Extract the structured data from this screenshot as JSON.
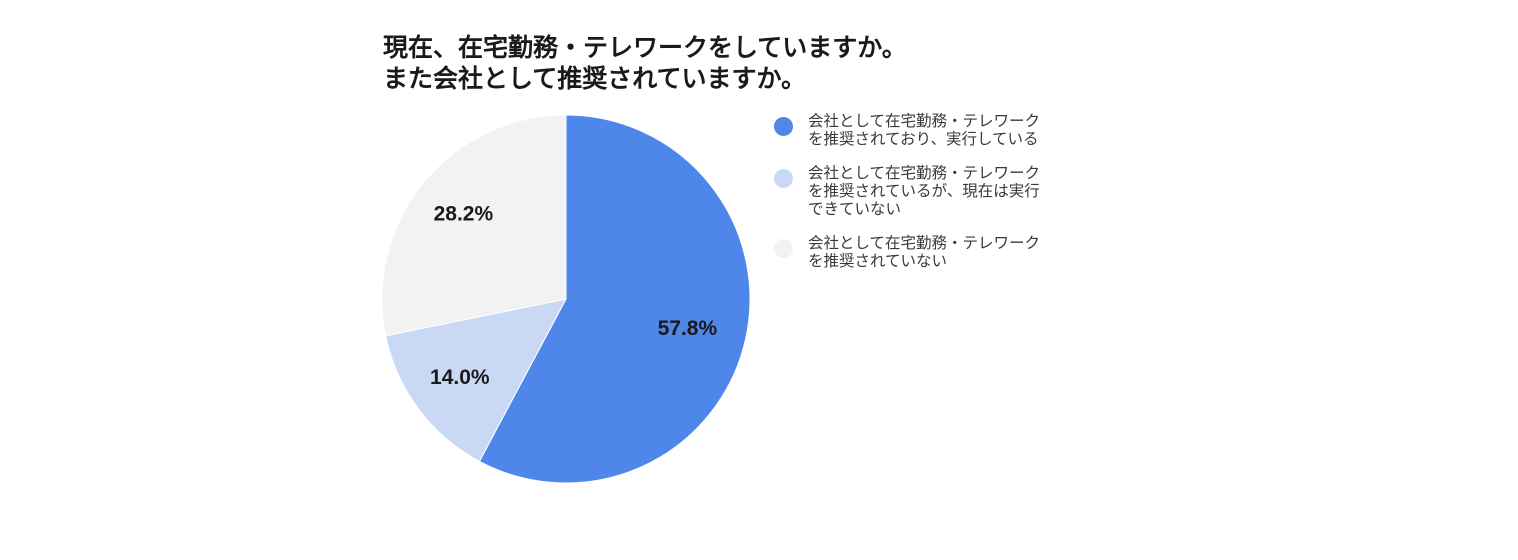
{
  "chart_data": {
    "type": "pie",
    "title_lines": [
      "現在、在宅勤務・テレワークをしていますか。",
      "また会社として推奨されていますか。"
    ],
    "slices": [
      {
        "label_lines": [
          "会社として在宅勤務・テレワーク",
          "を推奨されており、実行している"
        ],
        "value": 57.8,
        "value_label": "57.8%",
        "color": "#4f86ea"
      },
      {
        "label_lines": [
          "会社として在宅勤務・テレワーク",
          "を推奨されているが、現在は実行",
          "できていない"
        ],
        "value": 14.0,
        "value_label": "14.0%",
        "color": "#c9d9f5"
      },
      {
        "label_lines": [
          "会社として在宅勤務・テレワーク",
          "を推奨されていない"
        ],
        "value": 28.2,
        "value_label": "28.2%",
        "color": "#f2f2f2"
      }
    ],
    "start": "top",
    "direction": "clockwise",
    "legend_position": "right"
  }
}
